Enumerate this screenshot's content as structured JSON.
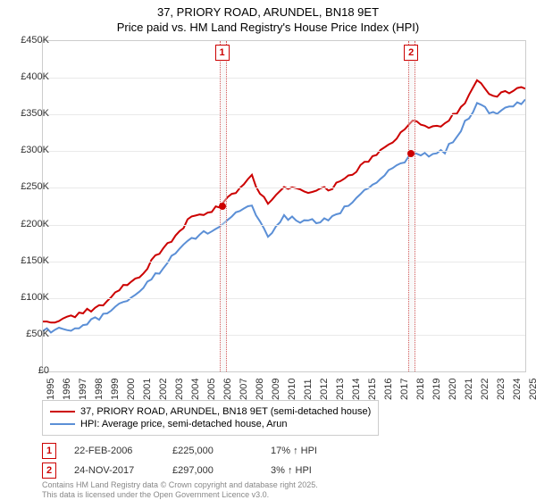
{
  "title_line1": "37, PRIORY ROAD, ARUNDEL, BN18 9ET",
  "title_line2": "Price paid vs. HM Land Registry's House Price Index (HPI)",
  "chart": {
    "type": "line",
    "background_color": "#ffffff",
    "grid_color": "#e9e9e9",
    "border_color": "#cccccc",
    "x_years": [
      1995,
      1996,
      1997,
      1998,
      1999,
      2000,
      2001,
      2002,
      2003,
      2004,
      2005,
      2006,
      2007,
      2008,
      2009,
      2010,
      2011,
      2012,
      2013,
      2014,
      2015,
      2016,
      2017,
      2018,
      2019,
      2020,
      2021,
      2022,
      2023,
      2024,
      2025
    ],
    "ylim": [
      0,
      450000
    ],
    "ytick_step": 50000,
    "ytick_labels": [
      "£0",
      "£50K",
      "£100K",
      "£150K",
      "£200K",
      "£250K",
      "£300K",
      "£350K",
      "£400K",
      "£450K"
    ],
    "series": [
      {
        "name": "37, PRIORY ROAD, ARUNDEL, BN18 9ET (semi-detached house)",
        "color": "#cc0000",
        "line_width": 2,
        "values_by_year": {
          "1995": 68000,
          "1996": 70000,
          "1997": 75000,
          "1998": 85000,
          "1999": 95000,
          "2000": 115000,
          "2001": 130000,
          "2002": 155000,
          "2003": 180000,
          "2004": 205000,
          "2005": 215000,
          "2006": 225000,
          "2007": 245000,
          "2008": 265000,
          "2009": 225000,
          "2010": 250000,
          "2011": 245000,
          "2012": 245000,
          "2013": 250000,
          "2014": 265000,
          "2015": 285000,
          "2016": 300000,
          "2017": 315000,
          "2018": 345000,
          "2019": 330000,
          "2020": 335000,
          "2021": 360000,
          "2022": 395000,
          "2023": 375000,
          "2024": 380000,
          "2025": 385000
        }
      },
      {
        "name": "HPI: Average price, semi-detached house, Arun",
        "color": "#5b8fd6",
        "line_width": 2,
        "values_by_year": {
          "1995": 55000,
          "1996": 56000,
          "1997": 60000,
          "1998": 68000,
          "1999": 78000,
          "2000": 95000,
          "2001": 110000,
          "2002": 130000,
          "2003": 155000,
          "2004": 180000,
          "2005": 188000,
          "2006": 195000,
          "2007": 215000,
          "2008": 225000,
          "2009": 185000,
          "2010": 210000,
          "2011": 205000,
          "2012": 205000,
          "2013": 210000,
          "2014": 225000,
          "2015": 245000,
          "2016": 265000,
          "2017": 280000,
          "2018": 295000,
          "2019": 295000,
          "2020": 300000,
          "2021": 330000,
          "2022": 365000,
          "2023": 350000,
          "2024": 360000,
          "2025": 370000
        }
      }
    ],
    "sale_markers": [
      {
        "num": "1",
        "year": 2006.14,
        "price": 225000,
        "color": "#cc0000"
      },
      {
        "num": "2",
        "year": 2017.9,
        "price": 297000,
        "color": "#cc0000"
      }
    ]
  },
  "legend": {
    "items": [
      {
        "color": "#cc0000",
        "label": "37, PRIORY ROAD, ARUNDEL, BN18 9ET (semi-detached house)"
      },
      {
        "color": "#5b8fd6",
        "label": "HPI: Average price, semi-detached house, Arun"
      }
    ]
  },
  "sales_table": [
    {
      "num": "1",
      "date": "22-FEB-2006",
      "price": "£225,000",
      "delta": "17% ↑ HPI"
    },
    {
      "num": "2",
      "date": "24-NOV-2017",
      "price": "£297,000",
      "delta": "3% ↑ HPI"
    }
  ],
  "attribution_line1": "Contains HM Land Registry data © Crown copyright and database right 2025.",
  "attribution_line2": "This data is licensed under the Open Government Licence v3.0."
}
